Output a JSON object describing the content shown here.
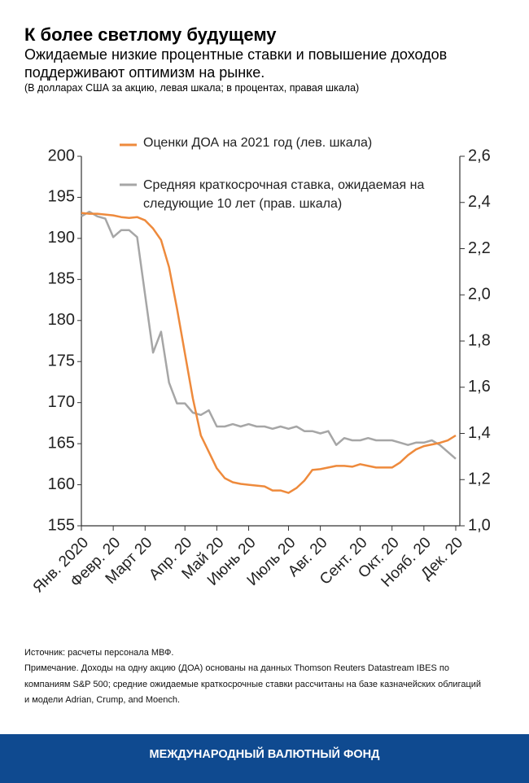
{
  "chart_data": {
    "type": "line",
    "title": "К более светлому будущему",
    "subtitle": "Ожидаемые низкие процентные ставки и повышение доходов поддерживают оптимизм на рынке.",
    "units_note": "(В долларах США за акцию, левая шкала; в процентах, правая шкала)",
    "categories": [
      "Янв. 2020",
      null,
      null,
      null,
      "Февр. 20",
      null,
      null,
      null,
      "Март 20",
      null,
      null,
      null,
      null,
      "Апр. 20",
      null,
      null,
      null,
      "Май 20",
      null,
      null,
      null,
      "Июнь 20",
      null,
      null,
      null,
      null,
      "Июль 20",
      null,
      null,
      null,
      "Авг. 20",
      null,
      null,
      null,
      null,
      "Сент. 20",
      null,
      null,
      null,
      "Окт. 20",
      null,
      null,
      null,
      "Нояб. 20",
      null,
      null,
      null,
      "Дек. 20"
    ],
    "series": [
      {
        "name": "Оценки ДОА на 2021 год (лев. шкала)",
        "color": "#ee8a3c",
        "axis": "y",
        "values": [
          193.1,
          193.0,
          193.0,
          192.9,
          192.8,
          192.6,
          192.5,
          192.6,
          192.2,
          191.2,
          189.8,
          186.5,
          181.5,
          176,
          170.5,
          166,
          164,
          162,
          160.8,
          160.3,
          160.1,
          160.0,
          159.9,
          159.8,
          159.3,
          159.3,
          159.0,
          159.6,
          160.5,
          161.8,
          161.9,
          162.1,
          162.3,
          162.3,
          162.2,
          162.5,
          162.3,
          162.1,
          162.1,
          162.1,
          162.7,
          163.6,
          164.3,
          164.7,
          164.9,
          165.1,
          165.4,
          166.0
        ]
      },
      {
        "name": "Средняя краткосрочная ставка, ожидаемая на следующие 10 лет (прав. шкала)",
        "color": "#a6a6a6",
        "axis": "y2",
        "values": [
          2.34,
          2.36,
          2.34,
          2.33,
          2.25,
          2.28,
          2.28,
          2.25,
          2.0,
          1.75,
          1.84,
          1.62,
          1.53,
          1.53,
          1.49,
          1.48,
          1.5,
          1.43,
          1.43,
          1.44,
          1.43,
          1.44,
          1.43,
          1.43,
          1.42,
          1.43,
          1.42,
          1.43,
          1.41,
          1.41,
          1.4,
          1.41,
          1.35,
          1.38,
          1.37,
          1.37,
          1.38,
          1.37,
          1.37,
          1.37,
          1.36,
          1.35,
          1.36,
          1.36,
          1.37,
          1.35,
          1.32,
          1.29
        ]
      }
    ],
    "ylim": [
      155,
      200
    ],
    "yticks": [
      155,
      160,
      165,
      170,
      175,
      180,
      185,
      190,
      195,
      200
    ],
    "y2lim": [
      1.0,
      2.6
    ],
    "y2ticks": [
      {
        "value": 1.0,
        "label": "1,0"
      },
      {
        "value": 1.2,
        "label": "1,2"
      },
      {
        "value": 1.4,
        "label": "1,4"
      },
      {
        "value": 1.6,
        "label": "1,6"
      },
      {
        "value": 1.8,
        "label": "1,8"
      },
      {
        "value": 2.0,
        "label": "2,0"
      },
      {
        "value": 2.2,
        "label": "2,2"
      },
      {
        "value": 2.4,
        "label": "2,4"
      },
      {
        "value": 2.6,
        "label": "2,6"
      }
    ],
    "legend": "top",
    "grid": false
  },
  "source": "Источник: расчеты персонала МВФ.",
  "note": "Примечание. Доходы на одну акцию (ДОА) основаны на данных Thomson Reuters Datastream IBES по компаниям S&P 500; средние ожидаемые краткосрочные ставки рассчитаны на базе казначейских облигаций и модели Adrian, Crump, and Moench.",
  "footer": "МЕЖДУНАРОДНЫЙ ВАЛЮТНЫЙ ФОНД"
}
